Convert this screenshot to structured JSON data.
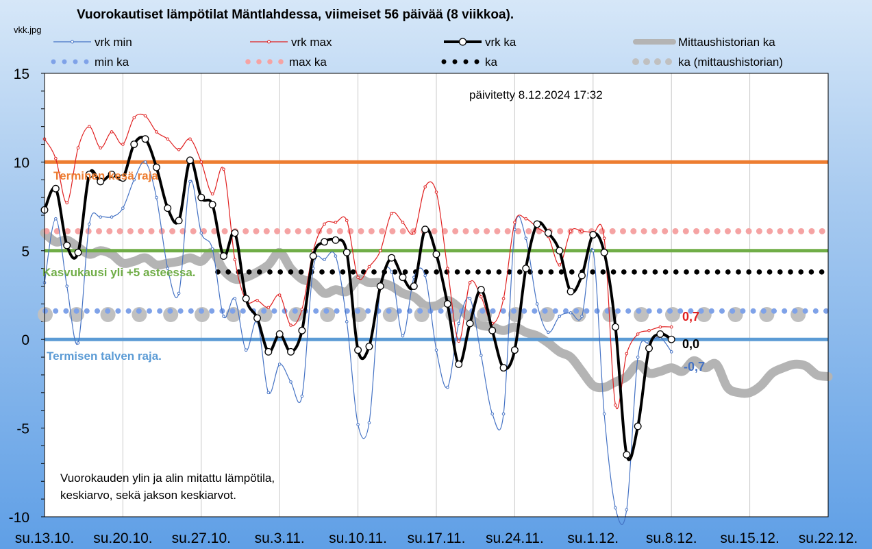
{
  "chart_data": {
    "type": "line",
    "title": "Vuorokautiset lämpötilat Mäntlahdessa, viimeiset 56 päivää (8 viikkoa).",
    "file_label": "vkk.jpg",
    "updated": "päivitetty 8.12.2024 17:32",
    "note_lines": [
      "Vuorokauden  ylin ja alin mitattu lämpötila,",
      "keskiarvo, sekä jakson keskiarvot."
    ],
    "ylim": [
      -10,
      15
    ],
    "yticks": [
      15,
      10,
      5,
      0,
      -5,
      -10
    ],
    "x_range_days": [
      0,
      70
    ],
    "x_tick_labels": [
      "su.13.10.",
      "su.20.10.",
      "su.27.10.",
      "su.3.11.",
      "su.10.11.",
      "su.17.11.",
      "su.24.11.",
      "su.1.12.",
      "su.8.12.",
      "su.15.12.",
      "su.22.12."
    ],
    "legend": [
      {
        "key": "vrk_min",
        "label": "vrk min"
      },
      {
        "key": "vrk_max",
        "label": "vrk max"
      },
      {
        "key": "vrk_ka",
        "label": "vrk ka"
      },
      {
        "key": "hist_ka",
        "label": "Mittaushistorian ka"
      },
      {
        "key": "min_ka",
        "label": "min ka"
      },
      {
        "key": "max_ka",
        "label": "max ka"
      },
      {
        "key": "ka",
        "label": "ka"
      },
      {
        "key": "hist_ka_avg",
        "label": "ka (mittaushistorian)"
      }
    ],
    "reference_lines": [
      {
        "key": "kesa",
        "value": 10,
        "label": "Terminen kesä raja",
        "color": "#ed7d31"
      },
      {
        "key": "kasvu",
        "value": 5,
        "label": "Kasvukausi yli +5 asteessa.",
        "color": "#70ad47"
      },
      {
        "key": "talvi",
        "value": 0,
        "label": "Termisen talven raja.",
        "color": "#5b9bd5"
      }
    ],
    "period_averages": {
      "min_ka": 1.6,
      "max_ka": 6.1,
      "ka": 3.8,
      "hist_ka": 1.4
    },
    "end_labels": {
      "max": "0,7",
      "ka": "0,0",
      "min": "-0,7"
    },
    "series": [
      {
        "key": "vrk_min",
        "name": "vrk min",
        "color": "#4472c4",
        "values": [
          3.2,
          6.8,
          3.0,
          -0.2,
          6.5,
          6.9,
          6.9,
          7.4,
          9.0,
          10.0,
          8.0,
          4.0,
          2.6,
          8.9,
          6.0,
          5.1,
          1.3,
          2.3,
          -0.6,
          1.0,
          -3.0,
          -1.4,
          -2.4,
          -3.2,
          4.0,
          4.5,
          4.7,
          1.0,
          -4.8,
          -4.7,
          2.9,
          3.8,
          0.2,
          3.5,
          3.6,
          -0.6,
          -2.7,
          0.9,
          2.3,
          -0.9,
          -4.2,
          -4.2,
          6.2,
          5.7,
          2.0,
          0.4,
          1.3,
          1.5,
          1.3,
          5.0,
          -4.2,
          -9.5,
          -9.6,
          -1.0,
          -0.2,
          0.1,
          -0.7
        ]
      },
      {
        "key": "vrk_max",
        "name": "vrk max",
        "color": "#e02020",
        "values": [
          11.3,
          10.2,
          7.7,
          10.8,
          12.0,
          10.8,
          11.7,
          11.0,
          12.5,
          12.6,
          11.7,
          11.3,
          10.7,
          11.3,
          10.0,
          8.2,
          9.6,
          4.5,
          2.2,
          2.2,
          1.8,
          2.5,
          0.8,
          1.7,
          5.0,
          6.5,
          6.6,
          6.7,
          3.5,
          4.1,
          5.0,
          7.1,
          6.6,
          6.0,
          8.6,
          8.3,
          4.0,
          -0.1,
          3.2,
          2.4,
          0.9,
          2.3,
          6.6,
          6.8,
          6.3,
          5.8,
          4.2,
          6.1,
          6.1,
          6.0,
          5.7,
          -3.7,
          -0.8,
          0.3,
          0.5,
          0.7,
          0.7
        ]
      },
      {
        "key": "vrk_ka",
        "name": "vrk ka",
        "color": "#000000",
        "values": [
          7.3,
          8.5,
          5.3,
          4.9,
          9.3,
          8.9,
          9.3,
          9.1,
          11.0,
          11.3,
          9.7,
          7.4,
          6.7,
          10.1,
          8.0,
          7.6,
          4.7,
          6.0,
          2.3,
          1.2,
          -0.7,
          0.3,
          -0.7,
          0.5,
          4.7,
          5.5,
          5.6,
          4.9,
          -0.6,
          -0.4,
          3.0,
          4.6,
          3.5,
          3.0,
          6.2,
          4.8,
          2.0,
          -1.4,
          0.9,
          2.8,
          0.5,
          -1.6,
          -0.6,
          4.0,
          6.5,
          6.0,
          5.0,
          2.7,
          3.6,
          5.9,
          4.9,
          0.7,
          -6.5,
          -4.9,
          -0.5,
          0.3,
          0.0
        ]
      },
      {
        "key": "hist_ka",
        "name": "Mittaushistorian ka",
        "color": "#b4b4b4",
        "x_start": 0,
        "values": [
          6.0,
          5.5,
          5.6,
          5.2,
          4.8,
          5.0,
          4.8,
          4.3,
          4.4,
          4.6,
          4.2,
          4.3,
          4.4,
          4.6,
          4.4,
          4.9,
          3.9,
          3.4,
          3.5,
          3.8,
          4.2,
          4.9,
          4.0,
          3.4,
          3.2,
          2.6,
          2.8,
          2.7,
          3.4,
          3.2,
          3.2,
          3.0,
          2.6,
          2.4,
          1.9,
          1.9,
          2.2,
          1.8,
          1.2,
          0.8,
          0.7,
          0.5,
          0.7,
          0.4,
          0.2,
          -0.2,
          -0.7,
          -1.0,
          -1.8,
          -2.6,
          -2.7,
          -2.4,
          -2.1,
          -1.4,
          -1.9,
          -1.8,
          -1.6,
          -1.8,
          -1.2,
          -1.6,
          -1.4,
          -2.7,
          -3.0,
          -3.0,
          -2.6,
          -1.9,
          -1.6,
          -1.4,
          -1.5,
          -2.0,
          -2.1
        ]
      }
    ]
  }
}
